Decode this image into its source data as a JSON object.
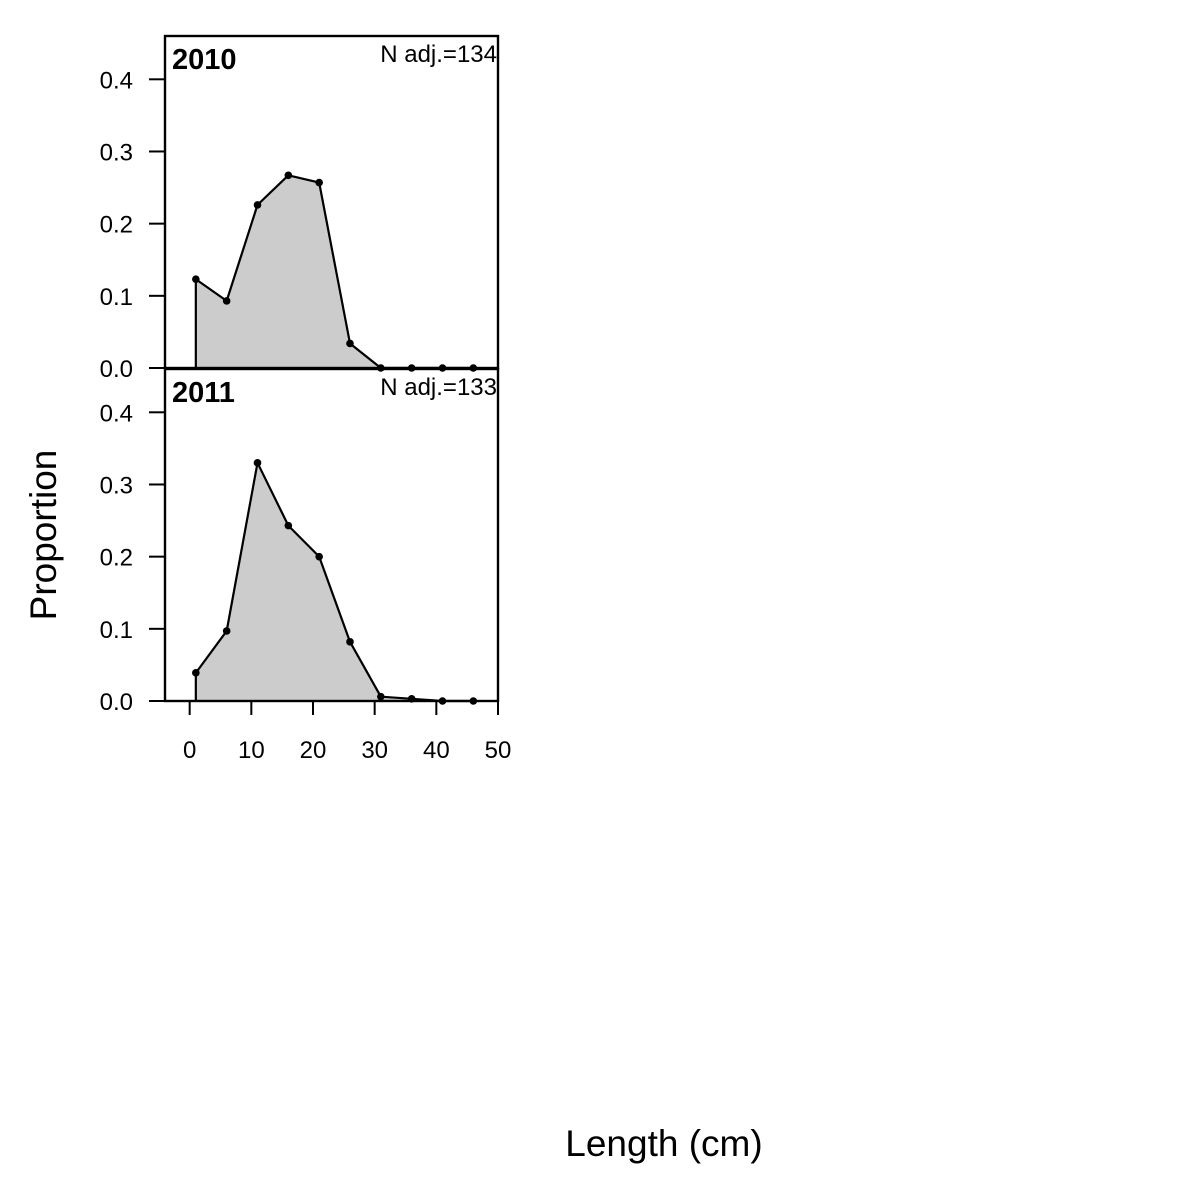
{
  "chart_data": {
    "type": "area",
    "xlabel": "Length (cm)",
    "ylabel": "Proportion",
    "xlim": [
      -4,
      50
    ],
    "ylim": [
      0,
      0.46
    ],
    "x_ticks": [
      0,
      10,
      20,
      30,
      40,
      50
    ],
    "y_ticks": [
      0.0,
      0.1,
      0.2,
      0.3,
      0.4
    ],
    "y_tick_labels": [
      "0.0",
      "0.1",
      "0.2",
      "0.3",
      "0.4"
    ],
    "fill_color": "#cccccc",
    "line_color": "#000000",
    "panels": [
      {
        "year": "2010",
        "n_label": "N adj.=134",
        "x": [
          1,
          6,
          11,
          16,
          21,
          26,
          31,
          36,
          41,
          46
        ],
        "values": [
          0.123,
          0.093,
          0.226,
          0.267,
          0.257,
          0.034,
          0.0,
          0.0,
          0.0,
          0.0
        ]
      },
      {
        "year": "2011",
        "n_label": "N adj.=133",
        "x": [
          1,
          6,
          11,
          16,
          21,
          26,
          31,
          36,
          41,
          46
        ],
        "values": [
          0.039,
          0.097,
          0.33,
          0.243,
          0.2,
          0.082,
          0.006,
          0.003,
          0.0,
          0.0
        ]
      }
    ]
  }
}
